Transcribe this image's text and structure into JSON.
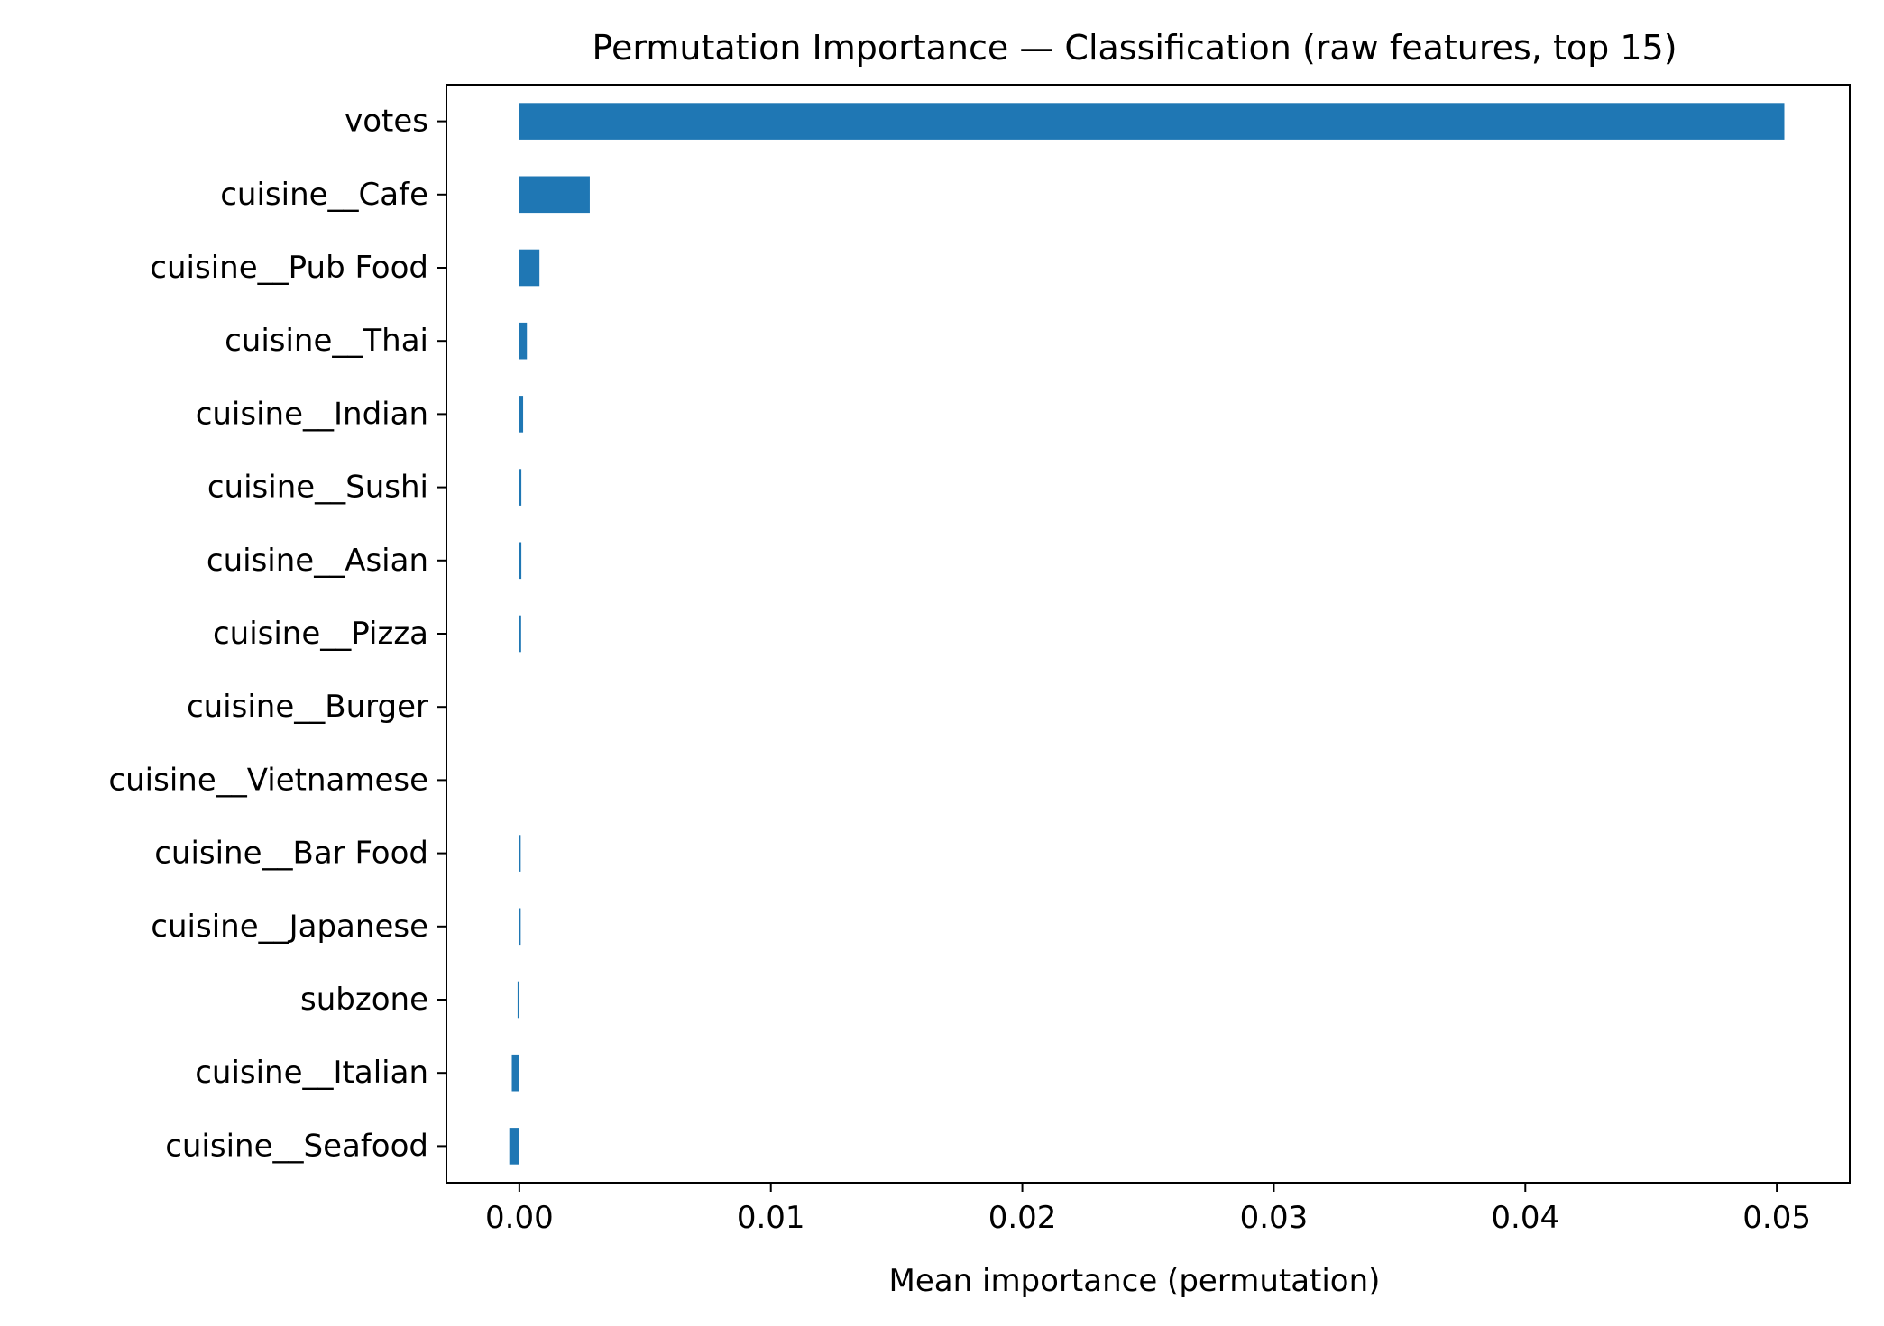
{
  "chart_data": {
    "type": "bar",
    "orientation": "horizontal",
    "title": "Permutation Importance — Classification (raw features, top 15)",
    "xlabel": "Mean importance (permutation)",
    "ylabel": "",
    "xlim": [
      -0.0029,
      0.0529
    ],
    "xticks": [
      0.0,
      0.01,
      0.02,
      0.03,
      0.04,
      0.05
    ],
    "xtick_labels": [
      "0.00",
      "0.01",
      "0.02",
      "0.03",
      "0.04",
      "0.05"
    ],
    "categories": [
      "votes",
      "cuisine__Cafe",
      "cuisine__Pub Food",
      "cuisine__Thai",
      "cuisine__Indian",
      "cuisine__Sushi",
      "cuisine__Asian",
      "cuisine__Pizza",
      "cuisine__Burger",
      "cuisine__Vietnamese",
      "cuisine__Bar Food",
      "cuisine__Japanese",
      "subzone",
      "cuisine__Italian",
      "cuisine__Seafood"
    ],
    "values": [
      0.0503,
      0.0028,
      0.0008,
      0.0003,
      0.00015,
      8e-05,
      8e-05,
      7e-05,
      0.0,
      0.0,
      3e-05,
      3e-05,
      -7e-05,
      -0.0003,
      -0.0004
    ],
    "bar_color": "#1f77b4",
    "grid": false,
    "legend": "none"
  }
}
